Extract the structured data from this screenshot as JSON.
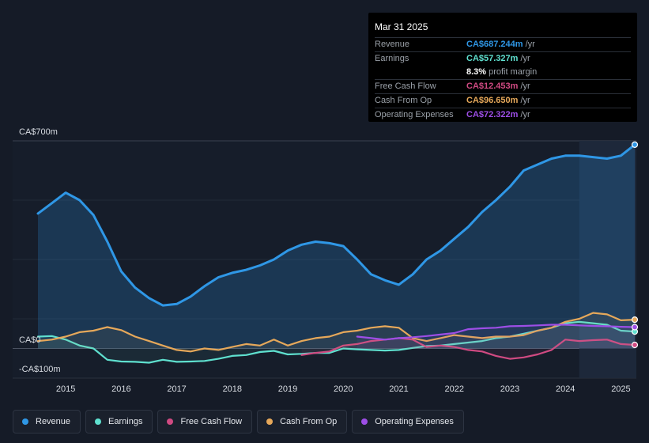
{
  "colors": {
    "revenue": "#2f97e6",
    "earnings": "#5fe0cf",
    "free_cash_flow": "#d04a82",
    "cash_from_op": "#e6a85a",
    "operating_expenses": "#9d4ee6"
  },
  "tooltip": {
    "date": "Mar 31 2025",
    "rows": [
      {
        "label": "Revenue",
        "value": "CA$687.244m",
        "unit": "/yr",
        "color": "#2f97e6"
      },
      {
        "label": "Earnings",
        "value": "CA$57.327m",
        "unit": "/yr",
        "color": "#5fe0cf"
      },
      {
        "label": "",
        "value": "8.3%",
        "unit": "profit margin",
        "color": "#ffffff"
      },
      {
        "label": "Free Cash Flow",
        "value": "CA$12.453m",
        "unit": "/yr",
        "color": "#d04a82"
      },
      {
        "label": "Cash From Op",
        "value": "CA$96.650m",
        "unit": "/yr",
        "color": "#e6a85a"
      },
      {
        "label": "Operating Expenses",
        "value": "CA$72.322m",
        "unit": "/yr",
        "color": "#9d4ee6"
      }
    ]
  },
  "legend": [
    {
      "label": "Revenue",
      "color": "#2f97e6"
    },
    {
      "label": "Earnings",
      "color": "#5fe0cf"
    },
    {
      "label": "Free Cash Flow",
      "color": "#d04a82"
    },
    {
      "label": "Cash From Op",
      "color": "#e6a85a"
    },
    {
      "label": "Operating Expenses",
      "color": "#9d4ee6"
    }
  ],
  "chart_data": {
    "type": "area",
    "title": "",
    "y_axis_labels": [
      "CA$700m",
      "CA$0",
      "-CA$100m"
    ],
    "ylim": [
      -100,
      700
    ],
    "xlim": [
      2014.5,
      2025.25
    ],
    "x_ticks": [
      2015,
      2016,
      2017,
      2018,
      2019,
      2020,
      2021,
      2022,
      2023,
      2024,
      2025
    ],
    "x_tick_labels": [
      "2015",
      "2016",
      "2017",
      "2018",
      "2019",
      "2020",
      "2021",
      "2022",
      "2023",
      "2024",
      "2025"
    ],
    "highlight_from": 2024.25,
    "series": [
      {
        "name": "Revenue",
        "key": "revenue",
        "fill": true,
        "x": [
          2014.5,
          2014.75,
          2015.0,
          2015.25,
          2015.5,
          2015.75,
          2016.0,
          2016.25,
          2016.5,
          2016.75,
          2017.0,
          2017.25,
          2017.5,
          2017.75,
          2018.0,
          2018.25,
          2018.5,
          2018.75,
          2019.0,
          2019.25,
          2019.5,
          2019.75,
          2020.0,
          2020.25,
          2020.5,
          2020.75,
          2021.0,
          2021.25,
          2021.5,
          2021.75,
          2022.0,
          2022.25,
          2022.5,
          2022.75,
          2023.0,
          2023.25,
          2023.5,
          2023.75,
          2024.0,
          2024.25,
          2024.5,
          2024.75,
          2025.0,
          2025.25
        ],
        "y": [
          455,
          490,
          525,
          500,
          450,
          360,
          260,
          205,
          170,
          145,
          150,
          175,
          210,
          240,
          255,
          265,
          280,
          300,
          330,
          350,
          360,
          355,
          345,
          300,
          250,
          230,
          215,
          250,
          300,
          330,
          370,
          410,
          460,
          500,
          545,
          600,
          620,
          640,
          650,
          650,
          645,
          640,
          650,
          687
        ]
      },
      {
        "name": "Earnings",
        "key": "earnings",
        "fill": false,
        "x": [
          2014.5,
          2014.75,
          2015.0,
          2015.25,
          2015.5,
          2015.75,
          2016.0,
          2016.25,
          2016.5,
          2016.75,
          2017.0,
          2017.25,
          2017.5,
          2017.75,
          2018.0,
          2018.25,
          2018.5,
          2018.75,
          2019.0,
          2019.25,
          2019.5,
          2019.75,
          2020.0,
          2020.25,
          2020.5,
          2020.75,
          2021.0,
          2021.25,
          2021.5,
          2021.75,
          2022.0,
          2022.25,
          2022.5,
          2022.75,
          2023.0,
          2023.25,
          2023.5,
          2023.75,
          2024.0,
          2024.25,
          2024.5,
          2024.75,
          2025.0,
          2025.25
        ],
        "y": [
          40,
          42,
          30,
          10,
          0,
          -38,
          -44,
          -45,
          -48,
          -38,
          -45,
          -44,
          -42,
          -35,
          -25,
          -22,
          -12,
          -8,
          -20,
          -18,
          -15,
          -15,
          0,
          -3,
          -5,
          -7,
          -5,
          2,
          8,
          10,
          15,
          20,
          25,
          35,
          40,
          50,
          60,
          70,
          85,
          90,
          85,
          80,
          60,
          57
        ]
      },
      {
        "name": "Free Cash Flow",
        "key": "free_cash_flow",
        "fill": false,
        "x": [
          2019.25,
          2019.5,
          2019.75,
          2020.0,
          2020.25,
          2020.5,
          2020.75,
          2021.0,
          2021.25,
          2021.5,
          2021.75,
          2022.0,
          2022.25,
          2022.5,
          2022.75,
          2023.0,
          2023.25,
          2023.5,
          2023.75,
          2024.0,
          2024.25,
          2024.5,
          2024.75,
          2025.0,
          2025.25
        ],
        "y": [
          -22,
          -15,
          -10,
          10,
          15,
          25,
          30,
          35,
          30,
          5,
          10,
          5,
          -5,
          -10,
          -25,
          -35,
          -30,
          -20,
          -5,
          30,
          25,
          28,
          30,
          15,
          12
        ]
      },
      {
        "name": "Cash From Op",
        "key": "cash_from_op",
        "fill": false,
        "x": [
          2014.5,
          2014.75,
          2015.0,
          2015.25,
          2015.5,
          2015.75,
          2016.0,
          2016.25,
          2016.5,
          2016.75,
          2017.0,
          2017.25,
          2017.5,
          2017.75,
          2018.0,
          2018.25,
          2018.5,
          2018.75,
          2019.0,
          2019.25,
          2019.5,
          2019.75,
          2020.0,
          2020.25,
          2020.5,
          2020.75,
          2021.0,
          2021.25,
          2021.5,
          2021.75,
          2022.0,
          2022.25,
          2022.5,
          2022.75,
          2023.0,
          2023.25,
          2023.5,
          2023.75,
          2024.0,
          2024.25,
          2024.5,
          2024.75,
          2025.0,
          2025.25
        ],
        "y": [
          25,
          30,
          40,
          55,
          60,
          72,
          62,
          40,
          25,
          10,
          -5,
          -10,
          0,
          -5,
          5,
          15,
          10,
          30,
          10,
          25,
          35,
          40,
          55,
          60,
          70,
          75,
          70,
          35,
          25,
          35,
          45,
          40,
          35,
          40,
          40,
          45,
          60,
          70,
          90,
          100,
          120,
          115,
          95,
          97
        ]
      },
      {
        "name": "Operating Expenses",
        "key": "operating_expenses",
        "fill": false,
        "x": [
          2020.25,
          2020.5,
          2020.75,
          2021.0,
          2021.25,
          2021.5,
          2021.75,
          2022.0,
          2022.25,
          2022.5,
          2022.75,
          2023.0,
          2023.25,
          2023.5,
          2023.75,
          2024.0,
          2024.25,
          2024.5,
          2024.75,
          2025.0,
          2025.25
        ],
        "y": [
          40,
          35,
          30,
          35,
          38,
          42,
          47,
          52,
          65,
          68,
          70,
          75,
          76,
          78,
          80,
          80,
          78,
          76,
          75,
          73,
          72
        ]
      }
    ]
  }
}
